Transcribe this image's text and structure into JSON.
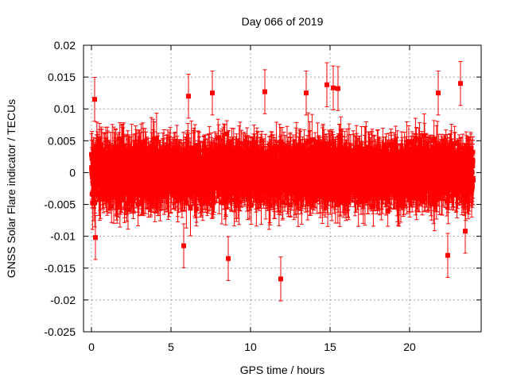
{
  "chart_data": {
    "type": "scatter",
    "title": "Day 066 of 2019",
    "xlabel": "GPS time / hours",
    "ylabel": "GNSS Solar Flare indicator / TECUs",
    "xlim": [
      -0.5,
      24.5
    ],
    "ylim": [
      -0.025,
      0.02
    ],
    "xticks": [
      0,
      5,
      10,
      15,
      20
    ],
    "xtick_labels": [
      "0",
      "5",
      "10",
      "15",
      "20"
    ],
    "yticks": [
      -0.025,
      -0.02,
      -0.015,
      -0.01,
      -0.005,
      0,
      0.005,
      0.01,
      0.015,
      0.02
    ],
    "ytick_labels": [
      "-0.025",
      "-0.02",
      "-0.015",
      "-0.01",
      "-0.005",
      "0",
      "0.005",
      "0.01",
      "0.015",
      "0.02"
    ],
    "grid": true,
    "series": [
      {
        "name": "GNSS Solar Flare indicator",
        "color": "#ff0000",
        "marker": "square",
        "error_bars": true,
        "x_range": [
          0,
          24
        ],
        "sample_interval_hours": 0.0083,
        "typical_spread": 0.0035,
        "typical_error": 0.003,
        "notable_points": [
          {
            "x": 0.2,
            "y": 0.0115
          },
          {
            "x": 0.25,
            "y": -0.0102
          },
          {
            "x": 5.8,
            "y": -0.0115
          },
          {
            "x": 6.1,
            "y": 0.012
          },
          {
            "x": 7.6,
            "y": 0.0125
          },
          {
            "x": 8.6,
            "y": -0.0135
          },
          {
            "x": 10.9,
            "y": 0.0127
          },
          {
            "x": 11.9,
            "y": -0.0167
          },
          {
            "x": 13.5,
            "y": 0.0125
          },
          {
            "x": 14.8,
            "y": 0.0138
          },
          {
            "x": 15.2,
            "y": 0.0133
          },
          {
            "x": 15.5,
            "y": 0.0132
          },
          {
            "x": 21.8,
            "y": 0.0125
          },
          {
            "x": 22.4,
            "y": -0.013
          },
          {
            "x": 23.2,
            "y": 0.014
          },
          {
            "x": 23.5,
            "y": -0.0092
          }
        ]
      }
    ]
  }
}
